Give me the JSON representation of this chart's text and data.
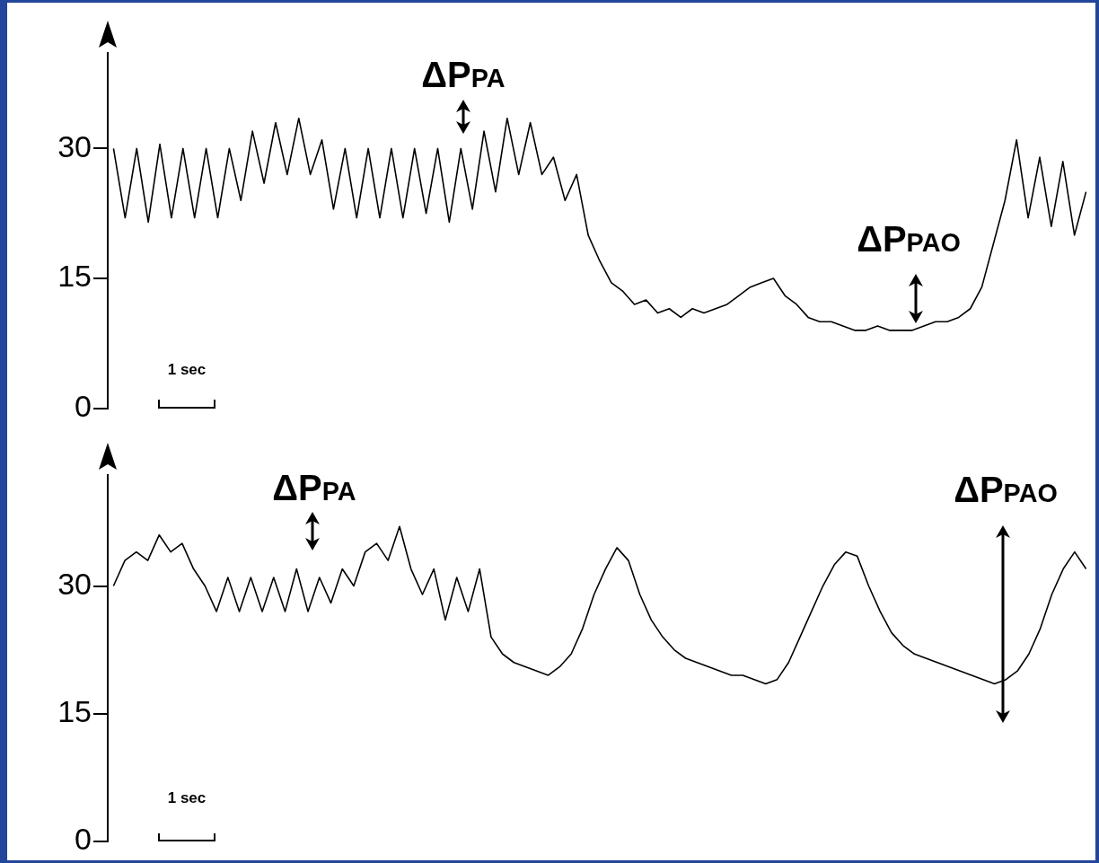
{
  "chart_data": [
    {
      "type": "line",
      "categories": [
        null,
        null,
        null,
        null,
        null,
        null,
        null,
        null,
        null,
        null,
        null,
        null,
        null,
        null,
        null,
        null,
        null,
        null,
        null,
        null,
        null,
        null,
        null,
        null,
        null,
        null,
        null,
        null,
        null,
        null,
        null,
        null,
        null,
        null,
        null,
        null,
        null,
        null,
        null,
        null,
        null,
        null,
        null,
        null,
        null,
        null,
        null,
        null,
        null,
        null,
        null,
        null,
        null,
        null,
        null,
        null,
        null,
        null,
        null,
        null,
        null,
        null,
        null,
        null,
        null,
        null,
        null,
        null,
        null,
        null,
        null,
        null,
        null,
        null,
        null,
        null,
        null,
        null,
        null,
        null,
        null,
        null,
        null,
        null,
        null
      ],
      "values": [
        30,
        22,
        30,
        21.5,
        30.5,
        22,
        30,
        22,
        30,
        22,
        30,
        24,
        32,
        26,
        33,
        27,
        33.5,
        27,
        31,
        23,
        30,
        22,
        30,
        22,
        30,
        22,
        30,
        22.5,
        30,
        21.5,
        30,
        23,
        32,
        25,
        33.5,
        27,
        33,
        27,
        29,
        24,
        27,
        20,
        17,
        14.5,
        13.5,
        12,
        12.5,
        11,
        11.5,
        10.5,
        11.5,
        11,
        11.5,
        12,
        13,
        14,
        14.5,
        15,
        13,
        12,
        10.5,
        10,
        10,
        9.5,
        9,
        9,
        9.5,
        9,
        9,
        9,
        9.5,
        10,
        10,
        10.5,
        11.5,
        14,
        19,
        24,
        31,
        22,
        29,
        21,
        28.5,
        20,
        25
      ],
      "color": "#000000",
      "ylim": [
        0,
        41
      ],
      "yticks": [
        0,
        15,
        30
      ],
      "tick_labels": "y",
      "grid": false,
      "legend": false,
      "marker": "none",
      "annotations": [
        "ΔP$_{PA}$",
        "ΔP$_{PAO}$",
        "1 sec"
      ]
    },
    {
      "type": "line",
      "categories": [
        null,
        null,
        null,
        null,
        null,
        null,
        null,
        null,
        null,
        null,
        null,
        null,
        null,
        null,
        null,
        null,
        null,
        null,
        null,
        null,
        null,
        null,
        null,
        null,
        null,
        null,
        null,
        null,
        null,
        null,
        null,
        null,
        null,
        null,
        null,
        null,
        null,
        null,
        null,
        null,
        null,
        null,
        null,
        null,
        null,
        null,
        null,
        null,
        null,
        null,
        null,
        null,
        null,
        null,
        null,
        null,
        null,
        null,
        null,
        null,
        null,
        null,
        null,
        null,
        null,
        null,
        null,
        null,
        null,
        null,
        null,
        null,
        null,
        null,
        null,
        null,
        null,
        null,
        null,
        null,
        null,
        null,
        null,
        null,
        null,
        null
      ],
      "values": [
        30,
        33,
        34,
        33,
        36,
        34,
        35,
        32,
        30,
        27,
        31,
        27,
        31,
        27,
        31,
        27,
        32,
        27,
        31,
        28,
        32,
        30,
        34,
        35,
        33,
        37,
        32,
        29,
        32,
        26,
        31,
        27,
        32,
        24,
        22,
        21,
        20.5,
        20,
        19.5,
        20.5,
        22,
        25,
        29,
        32,
        34.5,
        33,
        29,
        26,
        24,
        22.5,
        21.5,
        21,
        20.5,
        20,
        19.5,
        19.5,
        19,
        18.5,
        19,
        21,
        24,
        27,
        30,
        32.5,
        34,
        33.5,
        30,
        27,
        24.5,
        23,
        22,
        21.5,
        21,
        20.5,
        20,
        19.5,
        19,
        18.5,
        19,
        20,
        22,
        25,
        29,
        32,
        34,
        32
      ],
      "color": "#000000",
      "ylim": [
        0,
        43
      ],
      "yticks": [
        0,
        15,
        30
      ],
      "tick_labels": "y",
      "grid": false,
      "legend": false,
      "marker": "none",
      "annotations": [
        "ΔP$_{PA}$",
        "ΔP$_{PAO}$",
        "1 sec"
      ]
    }
  ]
}
